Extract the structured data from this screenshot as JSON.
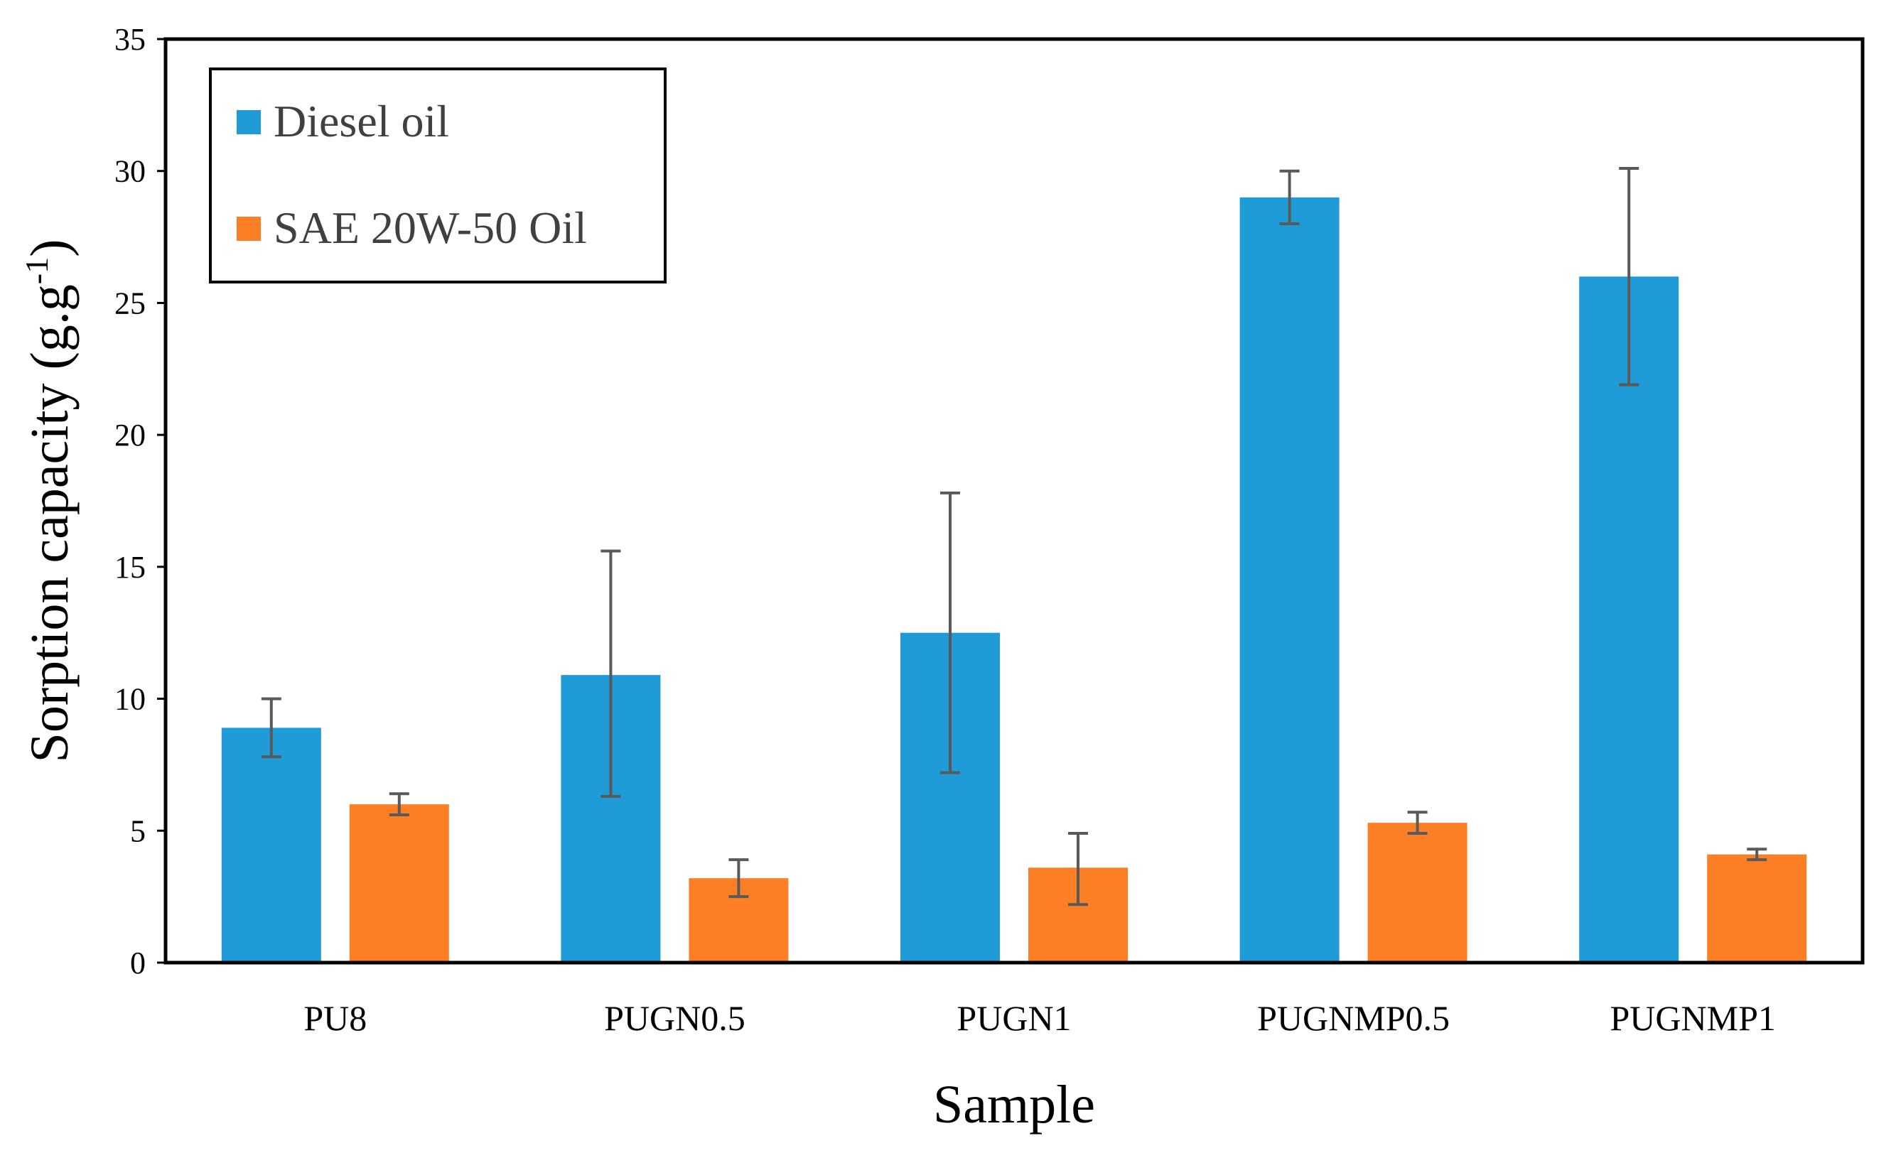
{
  "chart_data": {
    "type": "bar",
    "title": "",
    "xlabel": "Sample",
    "ylabel": "Sorption capacity (g.g",
    "ylabel_sup": "-1",
    "ylabel_close": ")",
    "ylim": [
      0,
      35
    ],
    "yticks": [
      0,
      5,
      10,
      15,
      20,
      25,
      30,
      35
    ],
    "categories": [
      "PU8",
      "PUGN0.5",
      "PUGN1",
      "PUGNMP0.5",
      "PUGNMP1"
    ],
    "series": [
      {
        "name": "Diesel oil",
        "color": "#1f9bd7",
        "values": [
          8.9,
          10.9,
          12.5,
          29.0,
          26.0
        ],
        "err_low": [
          7.8,
          6.3,
          7.2,
          28.0,
          21.9
        ],
        "err_high": [
          10.0,
          15.6,
          17.8,
          30.0,
          30.1
        ]
      },
      {
        "name": "SAE 20W-50 Oil",
        "color": "#fd7f25",
        "values": [
          6.0,
          3.2,
          3.6,
          5.3,
          4.1
        ],
        "err_low": [
          5.6,
          2.5,
          2.2,
          4.9,
          3.9
        ],
        "err_high": [
          6.4,
          3.9,
          4.9,
          5.7,
          4.3
        ]
      }
    ],
    "legend_position": "top-left",
    "grid": false
  }
}
